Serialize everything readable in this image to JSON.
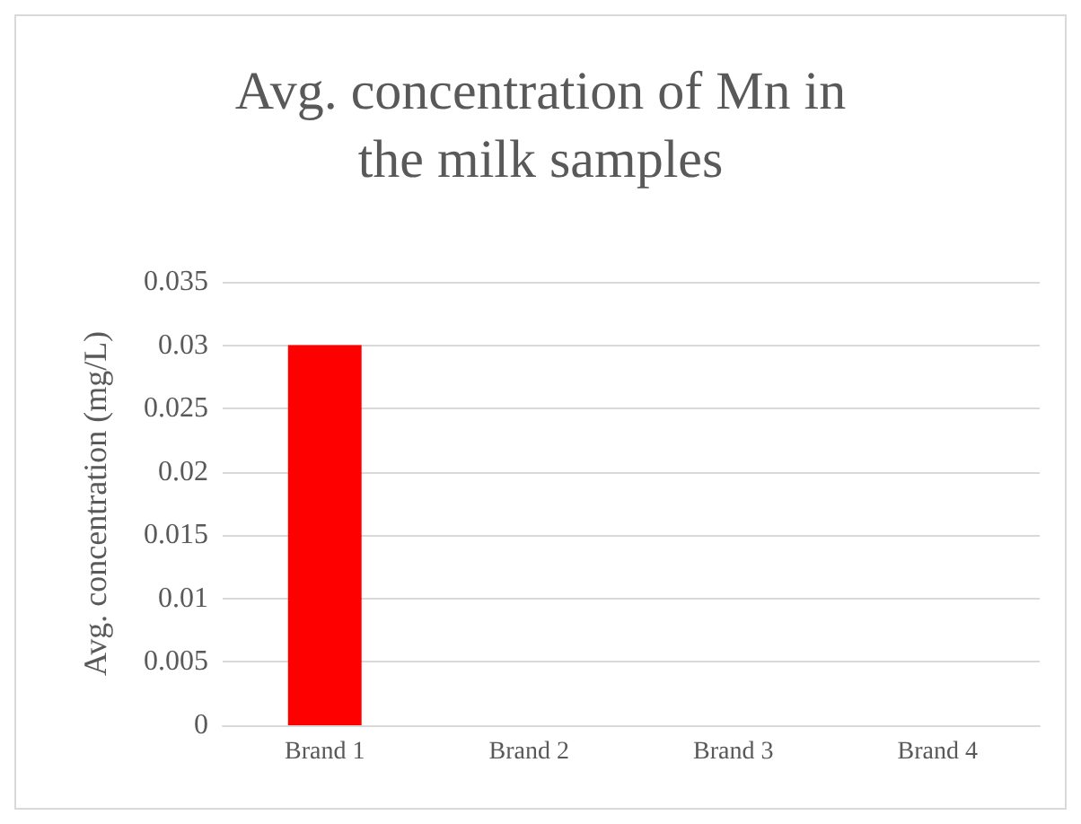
{
  "chart_data": {
    "type": "bar",
    "title": "Avg. concentration of Mn in\nthe milk samples",
    "ylabel": "Avg. concentration (mg/L)",
    "categories": [
      "Brand 1",
      "Brand 2",
      "Brand 3",
      "Brand 4"
    ],
    "values": [
      0.03,
      0,
      0,
      0
    ],
    "color": "#ff0000",
    "ylim": [
      0,
      0.035
    ],
    "yticks": [
      0,
      0.005,
      0.01,
      0.015,
      0.02,
      0.025,
      0.03,
      0.035
    ],
    "grid": "y"
  }
}
